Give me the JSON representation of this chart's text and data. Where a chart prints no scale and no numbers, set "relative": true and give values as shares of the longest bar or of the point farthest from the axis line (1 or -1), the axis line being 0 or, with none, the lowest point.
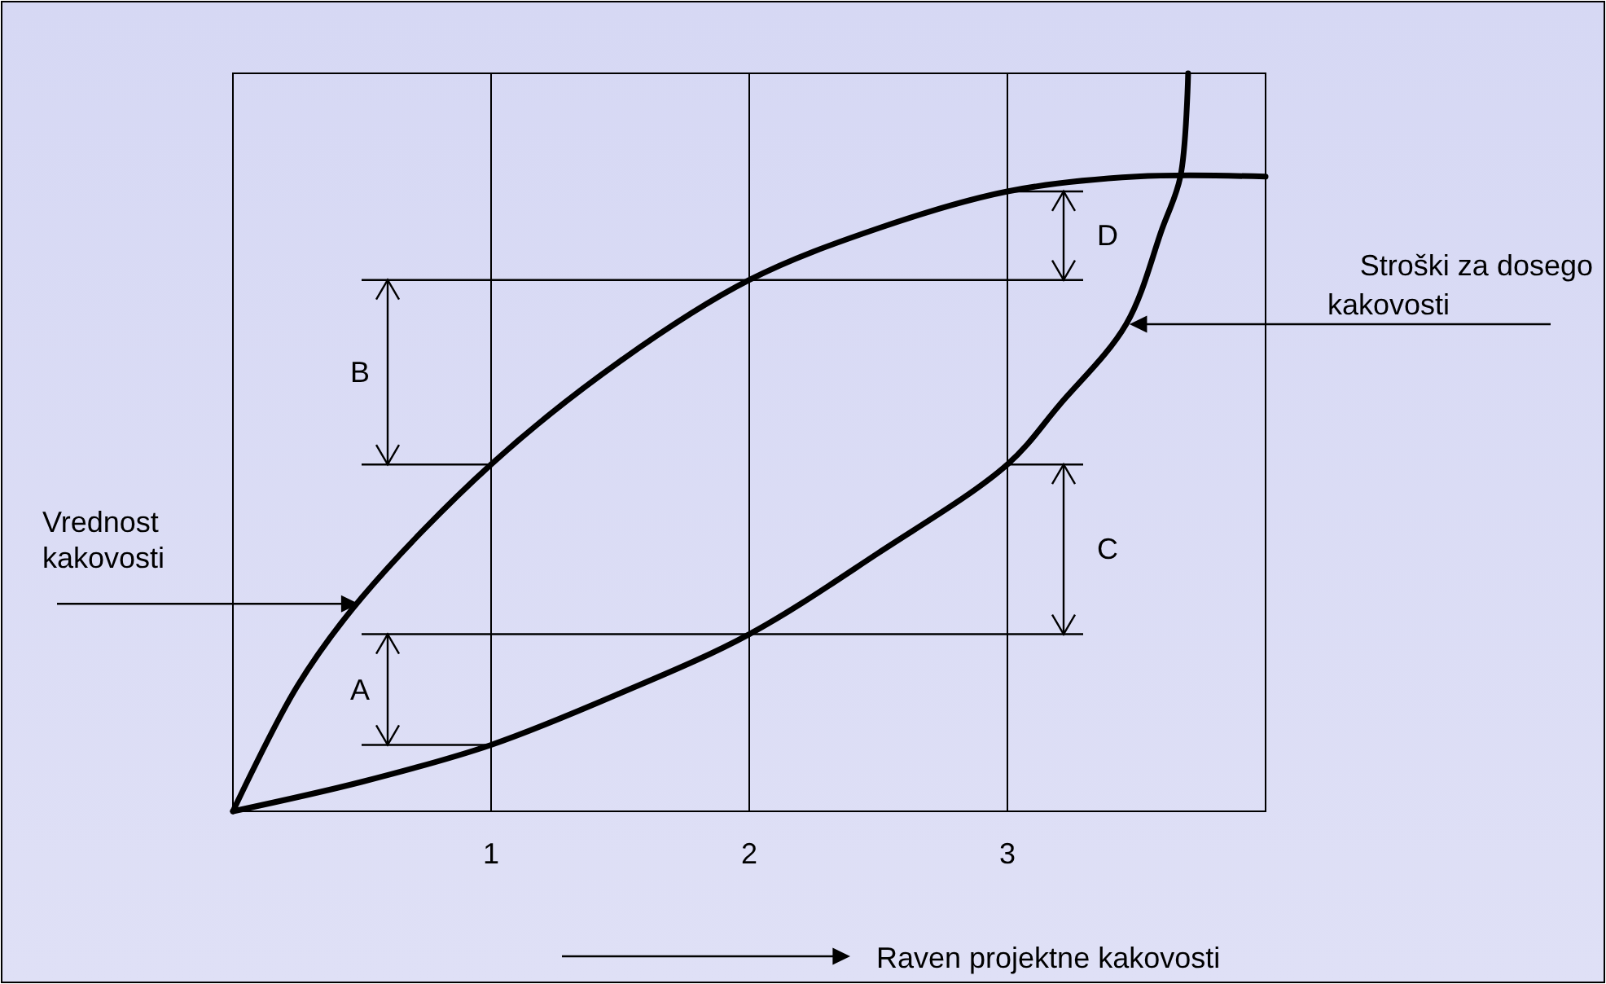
{
  "chart_data": {
    "type": "line",
    "relative": true,
    "xlabel": "Raven projektne kakovosti",
    "xlim": [
      0,
      4
    ],
    "xticks": [
      1,
      2,
      3
    ],
    "grid": "x",
    "legend": false,
    "line_style": "solid",
    "series": [
      {
        "name": "Vrednost kakovosti",
        "color": "#000000",
        "x": [
          0,
          0.25,
          0.5,
          1,
          1.5,
          2,
          2.5,
          3,
          3.5,
          4
        ],
        "values": [
          0,
          0.17,
          0.29,
          0.47,
          0.61,
          0.72,
          0.79,
          0.84,
          0.86,
          0.86
        ]
      },
      {
        "name": "Stroški za dosego kakovosti",
        "color": "#000000",
        "x": [
          0,
          0.5,
          1,
          1.5,
          2,
          2.5,
          3,
          3.2,
          3.46,
          3.6,
          3.67,
          3.7
        ],
        "values": [
          0,
          0.04,
          0.09,
          0.16,
          0.24,
          0.35,
          0.47,
          0.55,
          0.66,
          0.79,
          0.86,
          1
        ]
      }
    ],
    "annotations": [
      "A",
      "B",
      "C",
      "D"
    ]
  }
}
